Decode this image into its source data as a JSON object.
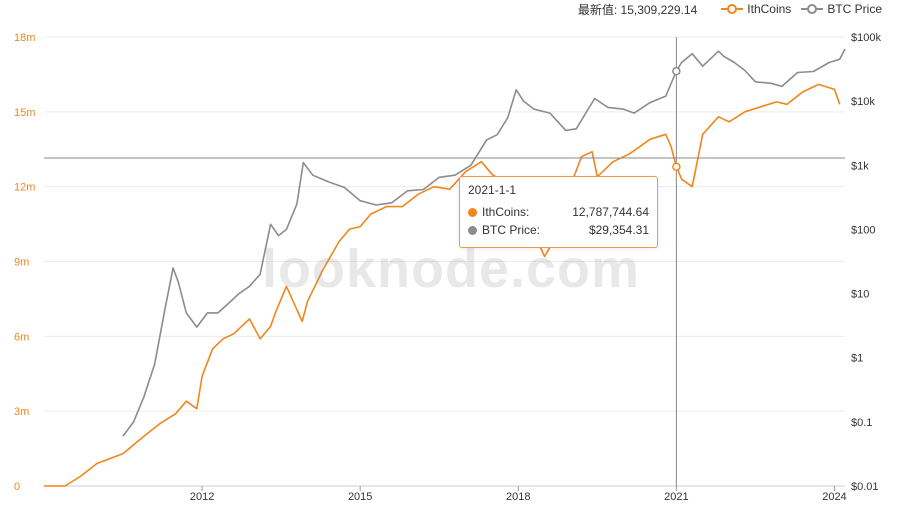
{
  "header": {
    "latest_label": "最新值: 15,309,229.14",
    "legend": [
      {
        "name": "IthCoins",
        "color": "#f0861c"
      },
      {
        "name": "BTC Price",
        "color": "#8c8c8c"
      }
    ]
  },
  "watermark": "looknode.com",
  "tooltip": {
    "date": "2021-1-1",
    "rows": [
      {
        "label": "IthCoins:",
        "value": "12,787,744.64",
        "color": "#f0861c"
      },
      {
        "label": "BTC Price:",
        "value": "$29,354.31",
        "color": "#8c8c8c"
      }
    ]
  },
  "chart_data": {
    "type": "line",
    "x_ticks": [
      {
        "label": "2012",
        "year": 2012
      },
      {
        "label": "2015",
        "year": 2015
      },
      {
        "label": "2018",
        "year": 2018
      },
      {
        "label": "2021",
        "year": 2021
      },
      {
        "label": "2024",
        "year": 2024
      }
    ],
    "xlim": [
      2009.0,
      2024.2
    ],
    "left_axis": {
      "ticks": [
        {
          "label": "0",
          "v": 0
        },
        {
          "label": "3m",
          "v": 3
        },
        {
          "label": "6m",
          "v": 6
        },
        {
          "label": "9m",
          "v": 9
        },
        {
          "label": "12m",
          "v": 12
        },
        {
          "label": "15m",
          "v": 15
        },
        {
          "label": "18m",
          "v": 18
        }
      ],
      "ylim": [
        0,
        18
      ],
      "unit": "millions",
      "color": "#f0861c"
    },
    "right_axis": {
      "scale": "log",
      "ticks": [
        {
          "label": "$0.01",
          "v": 0.01
        },
        {
          "label": "$0.1",
          "v": 0.1
        },
        {
          "label": "$1",
          "v": 1
        },
        {
          "label": "$10",
          "v": 10
        },
        {
          "label": "$100",
          "v": 100
        },
        {
          "label": "$1k",
          "v": 1000
        },
        {
          "label": "$10k",
          "v": 10000
        },
        {
          "label": "$100k",
          "v": 100000
        }
      ],
      "ylim": [
        0.01,
        100000
      ]
    },
    "grid": true,
    "hover_date": 2021.0,
    "series": [
      {
        "name": "IthCoins",
        "axis": "left",
        "color": "#f0861c",
        "x": [
          2009.0,
          2009.4,
          2009.7,
          2010.0,
          2010.5,
          2010.9,
          2011.2,
          2011.5,
          2011.7,
          2011.9,
          2012.0,
          2012.2,
          2012.4,
          2012.6,
          2012.9,
          2013.1,
          2013.3,
          2013.4,
          2013.6,
          2013.9,
          2014.0,
          2014.3,
          2014.6,
          2014.8,
          2015.0,
          2015.2,
          2015.5,
          2015.8,
          2016.1,
          2016.4,
          2016.7,
          2017.0,
          2017.3,
          2017.5,
          2017.7,
          2017.9,
          2018.0,
          2018.2,
          2018.5,
          2018.8,
          2019.0,
          2019.2,
          2019.4,
          2019.5,
          2019.8,
          2020.1,
          2020.3,
          2020.5,
          2020.8,
          2020.9,
          2021.0,
          2021.1,
          2021.3,
          2021.5,
          2021.8,
          2022.0,
          2022.3,
          2022.6,
          2022.9,
          2023.1,
          2023.4,
          2023.7,
          2024.0,
          2024.1
        ],
        "y": [
          0,
          0,
          0.4,
          0.9,
          1.3,
          2.0,
          2.5,
          2.9,
          3.4,
          3.1,
          4.4,
          5.5,
          5.9,
          6.1,
          6.7,
          5.9,
          6.4,
          7.0,
          8.0,
          6.6,
          7.4,
          8.7,
          9.8,
          10.3,
          10.4,
          10.9,
          11.2,
          11.2,
          11.7,
          12.0,
          11.9,
          12.6,
          13.0,
          12.5,
          12.2,
          11.6,
          11.4,
          10.6,
          9.2,
          10.3,
          12.1,
          13.2,
          13.4,
          12.4,
          13.0,
          13.3,
          13.6,
          13.9,
          14.1,
          13.6,
          12.8,
          12.3,
          12.0,
          14.1,
          14.8,
          14.6,
          15.0,
          15.2,
          15.4,
          15.3,
          15.8,
          16.1,
          15.9,
          15.3
        ]
      },
      {
        "name": "BTC Price",
        "axis": "right",
        "color": "#8c8c8c",
        "x": [
          2010.5,
          2010.7,
          2010.9,
          2011.1,
          2011.3,
          2011.45,
          2011.55,
          2011.7,
          2011.9,
          2012.1,
          2012.3,
          2012.5,
          2012.7,
          2012.9,
          2013.1,
          2013.3,
          2013.45,
          2013.6,
          2013.8,
          2013.92,
          2014.1,
          2014.4,
          2014.7,
          2015.0,
          2015.3,
          2015.6,
          2015.9,
          2016.2,
          2016.5,
          2016.8,
          2017.1,
          2017.4,
          2017.6,
          2017.8,
          2017.96,
          2018.1,
          2018.3,
          2018.6,
          2018.9,
          2019.1,
          2019.45,
          2019.7,
          2020.0,
          2020.2,
          2020.5,
          2020.8,
          2021.0,
          2021.1,
          2021.3,
          2021.5,
          2021.8,
          2021.9,
          2022.1,
          2022.3,
          2022.5,
          2022.8,
          2023.0,
          2023.3,
          2023.6,
          2023.9,
          2024.1,
          2024.2
        ],
        "y": [
          0.06,
          0.1,
          0.25,
          0.8,
          6,
          25,
          15,
          5,
          3,
          5,
          5,
          7,
          10,
          13,
          20,
          120,
          80,
          100,
          250,
          1100,
          700,
          550,
          450,
          280,
          240,
          260,
          400,
          420,
          650,
          700,
          1000,
          2500,
          3000,
          5500,
          15000,
          10000,
          7500,
          6500,
          3500,
          3700,
          11000,
          8000,
          7500,
          6500,
          9500,
          12000,
          29354,
          40000,
          55000,
          35000,
          60000,
          50000,
          40000,
          30000,
          20000,
          19000,
          17000,
          28000,
          29000,
          40000,
          45000,
          65000
        ]
      }
    ]
  }
}
